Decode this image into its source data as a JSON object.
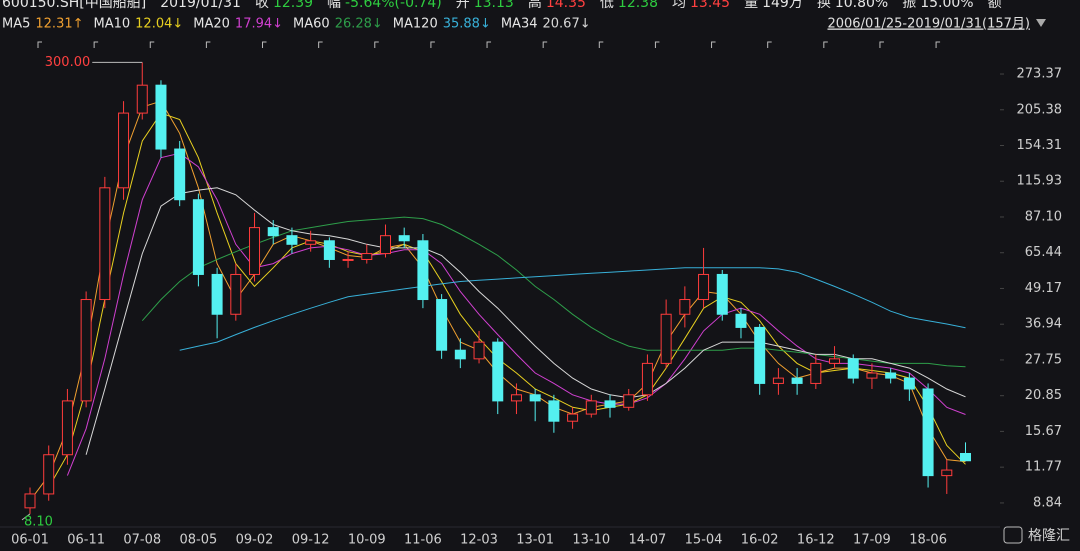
{
  "header": {
    "quote": [
      {
        "text": "600150.SH[中国船舶]",
        "color": "#e6e6e6"
      },
      {
        "text": "2019/01/31",
        "color": "#e6e6e6"
      },
      {
        "label": "收",
        "text": "12.39",
        "color": "#2ecc40"
      },
      {
        "label": "幅",
        "text": "-5.64%(-0.74)",
        "color": "#2ecc40"
      },
      {
        "label": "开",
        "text": "13.13",
        "color": "#2ecc40"
      },
      {
        "label": "高",
        "text": "14.35",
        "color": "#ff4040"
      },
      {
        "label": "低",
        "text": "12.38",
        "color": "#2ecc40"
      },
      {
        "label": "均",
        "text": "13.45",
        "color": "#ff4040"
      },
      {
        "label": "量",
        "text": "149万",
        "color": "#e6e6e6"
      },
      {
        "label": "换",
        "text": "10.80%",
        "color": "#e6e6e6"
      },
      {
        "label": "振",
        "text": "15.00%",
        "color": "#e6e6e6"
      },
      {
        "label": "额",
        "text": "",
        "color": "#e6e6e6"
      }
    ],
    "range": "2006/01/25-2019/01/31(157月)",
    "watermark": "格隆汇"
  },
  "chart_data": {
    "type": "candlestick",
    "yscale": "log",
    "grid": false,
    "up_color": "#ff3c3c",
    "down_color": "#54f0f0",
    "categories": [
      "06-01",
      null,
      null,
      "06-11",
      null,
      null,
      "07-08",
      null,
      null,
      "08-05",
      null,
      null,
      "09-02",
      null,
      null,
      "09-12",
      null,
      null,
      "10-09",
      null,
      null,
      "11-06",
      null,
      null,
      "12-03",
      null,
      null,
      "13-01",
      null,
      null,
      "13-10",
      null,
      null,
      "14-07",
      null,
      null,
      "15-04",
      null,
      null,
      "16-02",
      null,
      null,
      "16-12",
      null,
      null,
      "17-09",
      null,
      null,
      "18-06",
      null,
      null
    ],
    "open": [
      8.5,
      9.5,
      13,
      20,
      45,
      110,
      200,
      250,
      150,
      100,
      55,
      40,
      55,
      80,
      75,
      70,
      72,
      62,
      62,
      65,
      75,
      72,
      45,
      30,
      28,
      32,
      20,
      21,
      20,
      17,
      18,
      20,
      19,
      21,
      27,
      40,
      45,
      55,
      40,
      36,
      23,
      24,
      23,
      27,
      28,
      24,
      25,
      24,
      22,
      11,
      13.13
    ],
    "high": [
      10,
      14,
      22,
      48,
      120,
      220,
      300,
      260,
      160,
      105,
      58,
      60,
      90,
      85,
      80,
      78,
      74,
      66,
      70,
      82,
      80,
      76,
      47,
      33,
      35,
      33,
      23,
      22,
      21,
      19,
      21,
      21,
      22,
      29,
      45,
      50,
      68,
      57,
      42,
      37,
      26,
      26,
      29,
      31,
      29,
      27,
      26,
      25,
      23,
      12.5,
      14.35
    ],
    "low": [
      8.1,
      9,
      12,
      19,
      42,
      100,
      190,
      140,
      95,
      50,
      33,
      38,
      52,
      70,
      65,
      66,
      58,
      58,
      60,
      63,
      68,
      42,
      28,
      26,
      27,
      18,
      18,
      17,
      15.5,
      16,
      17.5,
      17.5,
      18.5,
      20,
      26,
      36,
      42,
      38,
      33,
      21,
      21,
      21,
      22,
      26,
      23,
      22,
      23,
      20,
      10,
      9.5,
      12.38
    ],
    "close": [
      9.5,
      13,
      20,
      45,
      110,
      200,
      250,
      150,
      100,
      55,
      40,
      55,
      80,
      75,
      70,
      72,
      62,
      62,
      65,
      75,
      72,
      45,
      30,
      28,
      32,
      20,
      21,
      20,
      17,
      18,
      20,
      19,
      21,
      27,
      40,
      45,
      55,
      40,
      36,
      23,
      24,
      23,
      27,
      28,
      24,
      25,
      24,
      22,
      11,
      11.5,
      12.39
    ],
    "max_label": "300.00",
    "min_label": "8.10",
    "series": [
      {
        "name": "MA5",
        "color": "#f0a030",
        "legend_value": "12.31↑",
        "values": [
          9,
          11,
          16,
          30,
          70,
          140,
          210,
          220,
          170,
          110,
          60,
          45,
          55,
          70,
          75,
          72,
          68,
          64,
          63,
          68,
          70,
          58,
          42,
          32,
          30,
          25,
          22,
          21,
          19,
          18,
          19,
          19.5,
          20,
          23,
          32,
          40,
          48,
          47,
          40,
          32,
          27,
          24,
          25,
          26,
          26,
          25,
          24.5,
          23,
          16,
          12.5,
          12.31
        ]
      },
      {
        "name": "MA10",
        "color": "#e8d020",
        "legend_value": "12.04↓",
        "values": [
          null,
          10,
          13,
          22,
          45,
          90,
          160,
          200,
          190,
          140,
          90,
          60,
          50,
          58,
          68,
          72,
          70,
          66,
          64,
          66,
          70,
          66,
          52,
          40,
          33,
          28,
          25,
          22,
          20.5,
          19,
          18.5,
          19,
          19.5,
          21,
          26,
          33,
          42,
          46,
          44,
          38,
          31,
          27,
          25,
          25.5,
          26,
          25.5,
          25,
          24,
          19,
          14,
          12.04
        ]
      },
      {
        "name": "MA20",
        "color": "#d040d0",
        "legend_value": "17.94↓",
        "values": [
          null,
          null,
          11,
          16,
          28,
          55,
          100,
          140,
          145,
          130,
          100,
          70,
          58,
          60,
          65,
          68,
          69,
          67,
          64,
          65,
          67,
          67,
          60,
          48,
          40,
          34,
          29,
          25,
          23,
          21,
          20,
          19.5,
          19.5,
          20.5,
          23,
          28,
          35,
          40,
          42,
          40,
          35,
          31,
          28,
          27,
          27,
          26.5,
          26,
          25,
          22,
          19,
          17.94
        ]
      },
      {
        "name": "MA60",
        "color": "#2e9e4a",
        "legend_value": "26.28↓",
        "values": [
          null,
          null,
          null,
          null,
          null,
          null,
          38,
          45,
          52,
          58,
          62,
          66,
          70,
          74,
          78,
          80,
          82,
          84,
          85,
          86,
          87,
          86,
          82,
          76,
          70,
          64,
          57,
          50,
          45,
          40,
          36,
          33,
          31,
          30,
          30,
          30,
          30,
          30,
          30.5,
          30.5,
          30,
          29.5,
          29,
          28.5,
          28,
          27.5,
          27,
          27,
          27,
          26.5,
          26.28
        ]
      },
      {
        "name": "MA120",
        "color": "#38b0d8",
        "legend_value": "35.88↓",
        "values": [
          null,
          null,
          null,
          null,
          null,
          null,
          null,
          null,
          30,
          31,
          32,
          34,
          36,
          38,
          40,
          42,
          44,
          46,
          47,
          48,
          49,
          50,
          51,
          52,
          52.5,
          53,
          53.5,
          54,
          54.5,
          55,
          55.5,
          56,
          56.5,
          57,
          57.5,
          58,
          58,
          58,
          58,
          58,
          57.5,
          56,
          53,
          50,
          47,
          44,
          41,
          39,
          38,
          37,
          35.88
        ]
      },
      {
        "name": "MA34",
        "color": "#d8d8d8",
        "legend_value": "20.67↓",
        "values": [
          null,
          null,
          null,
          13,
          22,
          38,
          65,
          95,
          105,
          108,
          110,
          104,
          92,
          82,
          78,
          76,
          75,
          73,
          70,
          68,
          68,
          68,
          64,
          56,
          48,
          42,
          36,
          31,
          27,
          24,
          22,
          21,
          20.5,
          21,
          23,
          26,
          30,
          32,
          32,
          32,
          31,
          30,
          29,
          29,
          28,
          28,
          27,
          26,
          24,
          22,
          20.67
        ]
      }
    ],
    "ylim": [
      7.41,
      344.8
    ],
    "yticks": [
      273.37,
      205.38,
      154.31,
      115.93,
      {
        "value": 87.1,
        "label": "87.10"
      },
      65.44,
      49.17,
      36.94,
      27.75,
      20.85,
      15.67,
      11.77,
      8.84
    ]
  }
}
